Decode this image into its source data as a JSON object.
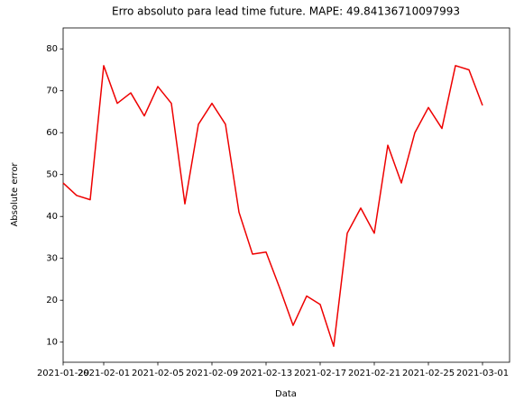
{
  "chart_data": {
    "type": "line",
    "title": "Erro absoluto para lead time future. MAPE: 49.84136710097993",
    "xlabel": "Data",
    "ylabel": "Absolute error",
    "x": [
      "2021-01-29",
      "2021-01-30",
      "2021-01-31",
      "2021-02-01",
      "2021-02-02",
      "2021-02-03",
      "2021-02-04",
      "2021-02-05",
      "2021-02-06",
      "2021-02-07",
      "2021-02-08",
      "2021-02-09",
      "2021-02-10",
      "2021-02-11",
      "2021-02-12",
      "2021-02-13",
      "2021-02-14",
      "2021-02-15",
      "2021-02-16",
      "2021-02-17",
      "2021-02-18",
      "2021-02-19",
      "2021-02-20",
      "2021-02-21",
      "2021-02-22",
      "2021-02-23",
      "2021-02-24",
      "2021-02-25",
      "2021-02-26",
      "2021-02-27",
      "2021-02-28",
      "2021-03-01"
    ],
    "series": [
      {
        "name": "Absolute error",
        "color": "#ee0000",
        "values": [
          48,
          45,
          44,
          76,
          67,
          69.5,
          64,
          71,
          67,
          43,
          62,
          67,
          62,
          41,
          31,
          31.5,
          23,
          14,
          21,
          19,
          9,
          36,
          42,
          36,
          57,
          48,
          60,
          66,
          61,
          76,
          75,
          66.5
        ]
      }
    ],
    "xlim": [
      "2021-01-29",
      "2021-03-03"
    ],
    "xticks": [
      "2021-01-29",
      "2021-02-01",
      "2021-02-05",
      "2021-02-09",
      "2021-02-13",
      "2021-02-17",
      "2021-02-21",
      "2021-02-25",
      "2021-03-01"
    ],
    "ylim": [
      5.2,
      85
    ],
    "yticks": [
      10,
      20,
      30,
      40,
      50,
      60,
      70,
      80
    ],
    "grid": false
  }
}
